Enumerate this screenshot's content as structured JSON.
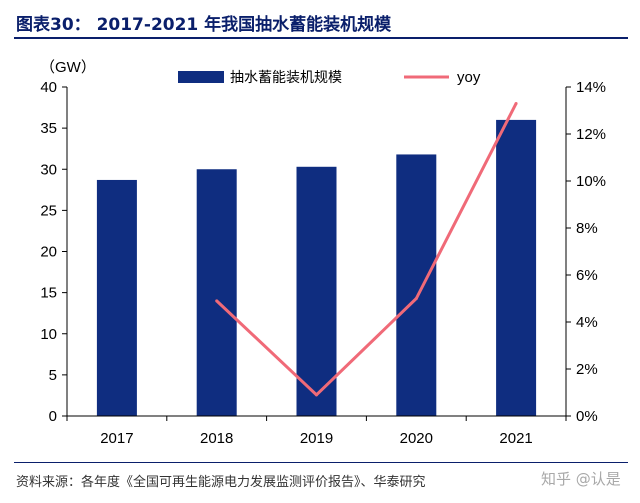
{
  "figure": {
    "title": "图表30： 2017-2021 年我国抽水蓄能装机规模",
    "source": "资料来源：各年度《全国可再生能源电力发展监测评价报告》、华泰研究",
    "watermark": "知乎 @认是"
  },
  "chart_data": {
    "type": "bar",
    "categories": [
      "2017",
      "2018",
      "2019",
      "2020",
      "2021"
    ],
    "series": [
      {
        "name": "抽水蓄能装机规模",
        "type": "bar",
        "axis": "left",
        "color": "#0f2d80",
        "values": [
          28.7,
          30.0,
          30.3,
          31.8,
          36.0
        ]
      },
      {
        "name": "yoy",
        "type": "line",
        "axis": "right",
        "color": "#f06a78",
        "values": [
          null,
          4.9,
          0.9,
          5.0,
          13.3
        ]
      }
    ],
    "y_left": {
      "unit_label": "（GW）",
      "ylim": [
        0,
        40
      ],
      "ticks": [
        "0",
        "5",
        "10",
        "15",
        "20",
        "25",
        "30",
        "35",
        "40"
      ]
    },
    "y_right": {
      "ylim": [
        0,
        14
      ],
      "ticks": [
        "0%",
        "2%",
        "4%",
        "6%",
        "8%",
        "10%",
        "12%",
        "14%"
      ]
    },
    "grid": false,
    "legend_position": "top"
  }
}
